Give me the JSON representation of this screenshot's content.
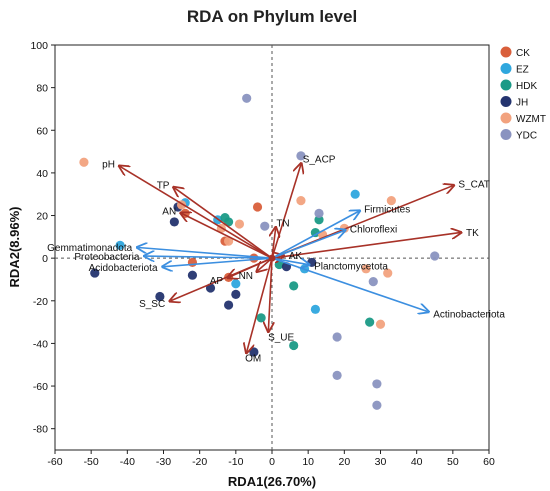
{
  "chart_data": {
    "type": "scatter",
    "title": "RDA on Phylum level",
    "xlabel": "RDA1(26.70%)",
    "ylabel": "RDA2(8.96%)",
    "xlim": [
      -60,
      60
    ],
    "ylim": [
      -90,
      100
    ],
    "xticks": [
      "-60",
      "-50",
      "-40",
      "-30",
      "-20",
      "-10",
      "0",
      "10",
      "20",
      "30",
      "40",
      "50",
      "60"
    ],
    "yticks": [
      "100",
      "80",
      "60",
      "40",
      "20",
      "0",
      "-20",
      "-40",
      "-60",
      "-80"
    ],
    "grid": false,
    "legend_position": "right",
    "series": [
      {
        "name": "CK",
        "color": "#D95F3B",
        "points": [
          [
            -22,
            -2
          ],
          [
            -5,
            0
          ],
          [
            -12,
            -9
          ],
          [
            -4,
            24
          ],
          [
            -13,
            8
          ],
          [
            -24,
            21
          ]
        ]
      },
      {
        "name": "EZ",
        "color": "#2FA7DE",
        "points": [
          [
            -42,
            6
          ],
          [
            -10,
            -12
          ],
          [
            9,
            -5
          ],
          [
            12,
            -24
          ],
          [
            -24,
            26
          ],
          [
            23,
            30
          ],
          [
            -15,
            18
          ]
        ]
      },
      {
        "name": "HDK",
        "color": "#1A9A86",
        "points": [
          [
            2,
            -3
          ],
          [
            6,
            -13
          ],
          [
            6,
            -41
          ],
          [
            13,
            18
          ],
          [
            12,
            12
          ],
          [
            -13,
            19
          ],
          [
            -12,
            17
          ],
          [
            27,
            -30
          ],
          [
            -3,
            -28
          ]
        ]
      },
      {
        "name": "JH",
        "color": "#24346F",
        "points": [
          [
            -49,
            -7
          ],
          [
            -31,
            -18
          ],
          [
            -27,
            17
          ],
          [
            -22,
            -8
          ],
          [
            -17,
            -14
          ],
          [
            -12,
            -22
          ],
          [
            -5,
            -44
          ],
          [
            -10,
            -17
          ],
          [
            -26,
            24
          ],
          [
            4,
            -4
          ],
          [
            11,
            -2
          ]
        ]
      },
      {
        "name": "WZMT",
        "color": "#F2A27E",
        "points": [
          [
            -52,
            45
          ],
          [
            -25,
            25
          ],
          [
            -12,
            8
          ],
          [
            -9,
            16
          ],
          [
            8,
            27
          ],
          [
            14,
            11
          ],
          [
            26,
            -5
          ],
          [
            30,
            -31
          ],
          [
            33,
            27
          ],
          [
            32,
            -7
          ],
          [
            20,
            14
          ],
          [
            -14,
            14
          ]
        ]
      },
      {
        "name": "YDC",
        "color": "#8A93C0",
        "points": [
          [
            -7,
            75
          ],
          [
            8,
            48
          ],
          [
            13,
            21
          ],
          [
            18,
            -37
          ],
          [
            18,
            -55
          ],
          [
            29,
            -59
          ],
          [
            29,
            -69
          ],
          [
            45,
            1
          ],
          [
            28,
            -11
          ],
          [
            -2,
            15
          ]
        ]
      }
    ],
    "vectors": [
      {
        "name": "pH",
        "x": -42,
        "y": 43,
        "type": "env"
      },
      {
        "name": "TP",
        "x": -27,
        "y": 33,
        "type": "env"
      },
      {
        "name": "AN",
        "x": -25,
        "y": 21,
        "type": "env"
      },
      {
        "name": "S_ACP",
        "x": 8,
        "y": 44,
        "type": "env"
      },
      {
        "name": "S_CAT",
        "x": 50,
        "y": 34,
        "type": "env"
      },
      {
        "name": "TK",
        "x": 52,
        "y": 12,
        "type": "env"
      },
      {
        "name": "TN",
        "x": 1,
        "y": 14,
        "type": "env"
      },
      {
        "name": "AK",
        "x": 3,
        "y": 1,
        "type": "env"
      },
      {
        "name": "AP",
        "x": -12,
        "y": -9,
        "type": "env"
      },
      {
        "name": "NN",
        "x": -4,
        "y": -6,
        "type": "env"
      },
      {
        "name": "S_SC",
        "x": -28,
        "y": -20,
        "type": "env"
      },
      {
        "name": "S_UE",
        "x": -1,
        "y": -34,
        "type": "env"
      },
      {
        "name": "OM",
        "x": -7,
        "y": -44,
        "type": "env"
      },
      {
        "name": "Firmicutes",
        "x": 24,
        "y": 22,
        "type": "taxon"
      },
      {
        "name": "Chloroflexi",
        "x": 20,
        "y": 13,
        "type": "taxon"
      },
      {
        "name": "Actinobacteriota",
        "x": 43,
        "y": -25,
        "type": "taxon"
      },
      {
        "name": "Planctomycetota",
        "x": 10,
        "y": -3,
        "type": "taxon"
      },
      {
        "name": "Gemmatimonadota",
        "x": -37,
        "y": 5,
        "type": "taxon"
      },
      {
        "name": "Proteobacteria",
        "x": -35,
        "y": 1,
        "type": "taxon"
      },
      {
        "name": "Acidobacteriota",
        "x": -30,
        "y": -4,
        "type": "taxon"
      }
    ],
    "env_color": "#A83228",
    "taxon_color": "#3C8FE0"
  }
}
